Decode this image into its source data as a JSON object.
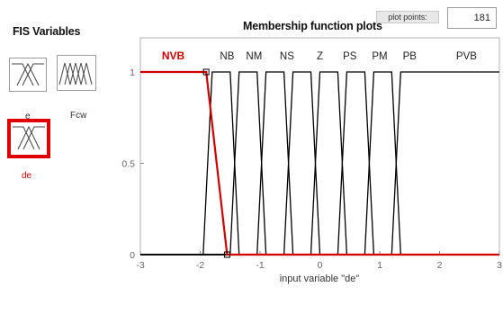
{
  "fis_variables": {
    "title": "FIS Variables",
    "inputs": [
      {
        "label": "e",
        "selected": false
      },
      {
        "label": "de",
        "selected": true
      }
    ],
    "outputs": [
      {
        "label": "Fcw",
        "selected": false
      }
    ]
  },
  "plot": {
    "title": "Membership function plots",
    "plot_points_label": "plot points:",
    "plot_points_value": "181"
  },
  "chart_data": {
    "type": "line",
    "title": "Membership function plots",
    "xlabel": "input variable \"de\"",
    "ylabel": "",
    "xlim": [
      -3,
      3
    ],
    "ylim": [
      0,
      1
    ],
    "xticks": [
      "-3",
      "-2",
      "-1",
      "0",
      "1",
      "2",
      "3"
    ],
    "yticks": [
      "0",
      "0.5",
      "1"
    ],
    "grid": false,
    "selected_series": "NVB",
    "colors": {
      "selected": "#d40000",
      "normal": "#000000"
    },
    "series": [
      {
        "name": "NVB",
        "x": [
          -3,
          -1.9,
          -1.55,
          3
        ],
        "y": [
          1,
          1,
          0,
          0
        ]
      },
      {
        "name": "NB",
        "x": [
          -3,
          -1.95,
          -1.8,
          -1.5,
          -1.35,
          3
        ],
        "y": [
          0,
          0,
          1,
          1,
          0,
          0
        ]
      },
      {
        "name": "NM",
        "x": [
          -3,
          -1.5,
          -1.35,
          -1.05,
          -0.9,
          3
        ],
        "y": [
          0,
          0,
          1,
          1,
          0,
          0
        ]
      },
      {
        "name": "NS",
        "x": [
          -3,
          -1.05,
          -0.9,
          -0.6,
          -0.45,
          3
        ],
        "y": [
          0,
          0,
          1,
          1,
          0,
          0
        ]
      },
      {
        "name": "Z",
        "x": [
          -3,
          -0.6,
          -0.45,
          -0.15,
          0,
          3
        ],
        "y": [
          0,
          0,
          1,
          1,
          0,
          0
        ]
      },
      {
        "name": "PS",
        "x": [
          -3,
          -0.15,
          0,
          0.3,
          0.45,
          3
        ],
        "y": [
          0,
          0,
          1,
          1,
          0,
          0
        ]
      },
      {
        "name": "PM",
        "x": [
          -3,
          0.3,
          0.45,
          0.75,
          0.9,
          3
        ],
        "y": [
          0,
          0,
          1,
          1,
          0,
          0
        ]
      },
      {
        "name": "PB",
        "x": [
          -3,
          0.75,
          0.9,
          1.2,
          1.35,
          3
        ],
        "y": [
          0,
          0,
          1,
          1,
          0,
          0
        ]
      },
      {
        "name": "PVB",
        "x": [
          -3,
          1.2,
          1.35,
          1.95,
          3
        ],
        "y": [
          0,
          0,
          1,
          1,
          1
        ]
      }
    ],
    "mf_label_x": {
      "NVB": -2.45,
      "NB": -1.55,
      "NM": -1.1,
      "NS": -0.55,
      "Z": 0,
      "PS": 0.5,
      "PM": 1.0,
      "PB": 1.5,
      "PVB": 2.45
    }
  }
}
